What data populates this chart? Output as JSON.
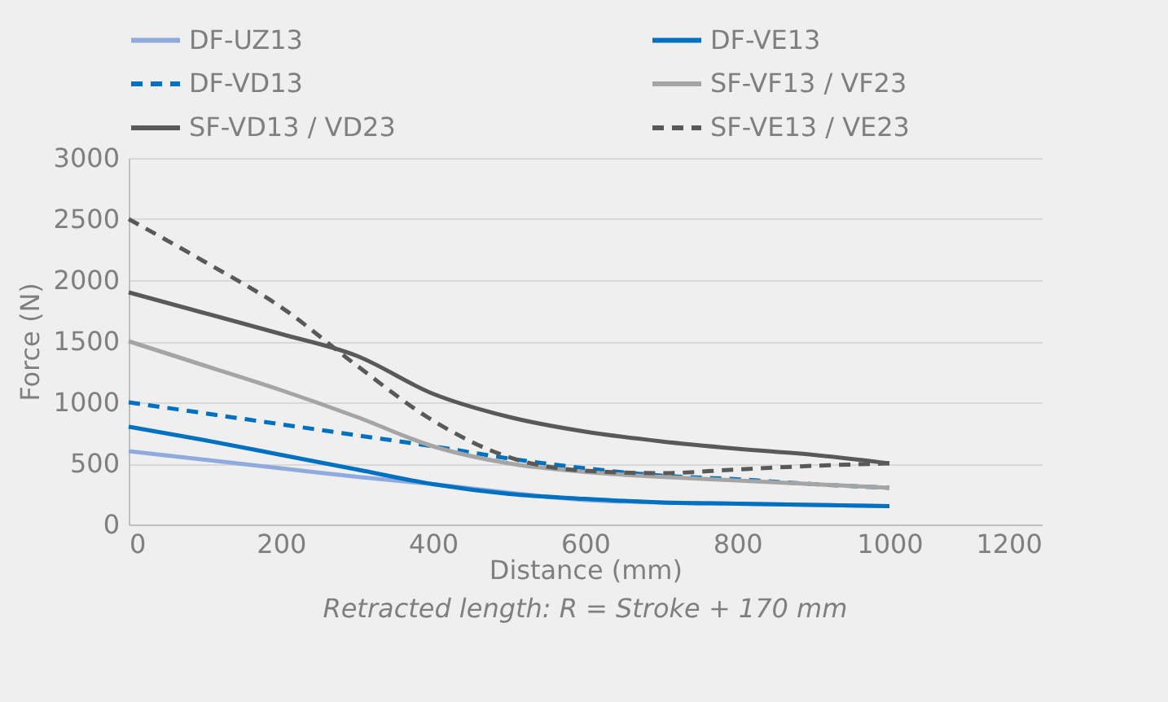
{
  "chart_data": {
    "type": "line",
    "xlabel": "Distance (mm)",
    "ylabel": "Force (N)",
    "x": [
      0,
      100,
      200,
      300,
      400,
      500,
      600,
      700,
      800,
      900,
      1000
    ],
    "series": [
      {
        "name": "DF-UZ13",
        "color": "#8faadc",
        "line_style": "solid",
        "values": [
          600,
          530,
          460,
          390,
          330,
          260,
          200,
          180,
          170,
          160,
          150
        ]
      },
      {
        "name": "DF-VE13",
        "color": "#0070c0",
        "line_style": "solid",
        "values": [
          800,
          690,
          570,
          450,
          330,
          250,
          210,
          180,
          170,
          160,
          150
        ]
      },
      {
        "name": "DF-VD13",
        "color": "#0070c0",
        "line_style": "dashed",
        "values": [
          1000,
          910,
          820,
          730,
          640,
          540,
          460,
          400,
          370,
          330,
          300
        ]
      },
      {
        "name": "SF-VF13 / VF23",
        "color": "#a5a5a5",
        "line_style": "solid",
        "values": [
          1500,
          1300,
          1100,
          880,
          640,
          500,
          430,
          390,
          360,
          330,
          300
        ]
      },
      {
        "name": "SF-VD13 / VD23",
        "color": "#595959",
        "line_style": "solid",
        "values": [
          1900,
          1730,
          1560,
          1380,
          1070,
          880,
          760,
          680,
          620,
          570,
          500
        ]
      },
      {
        "name": "SF-VE13 / VE23",
        "color": "#595959",
        "line_style": "dashed",
        "values": [
          2500,
          2150,
          1780,
          1300,
          850,
          550,
          440,
          420,
          450,
          480,
          500
        ]
      }
    ],
    "xlim": [
      0,
      1200
    ],
    "xticks": [
      0,
      200,
      400,
      600,
      800,
      1000,
      1200
    ],
    "ylim": [
      0,
      3000
    ],
    "yticks": [
      0,
      500,
      1000,
      1500,
      2000,
      2500,
      3000
    ],
    "grid": "y",
    "legend": "top",
    "marker": "none",
    "annotations": [
      "Retracted length: R = Stroke + 170 mm"
    ]
  }
}
